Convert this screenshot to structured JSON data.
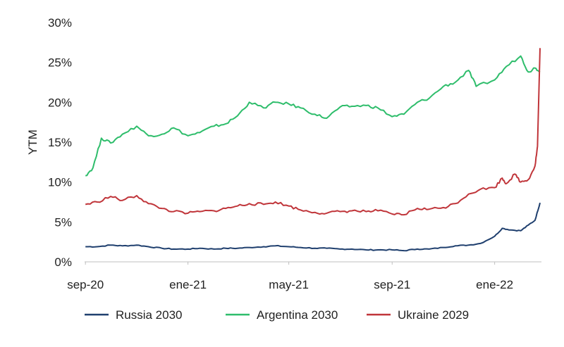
{
  "chart_data": {
    "type": "line",
    "title": "",
    "xlabel": "",
    "ylabel": "YTM",
    "ylim": [
      0,
      30
    ],
    "yticks": [
      "0%",
      "5%",
      "10%",
      "15%",
      "20%",
      "25%",
      "30%"
    ],
    "x_tick_labels": [
      "sep-20",
      "ene-21",
      "may-21",
      "sep-21",
      "ene-22"
    ],
    "x_ticks": [
      "2020-09-01",
      "2021-01-01",
      "2021-05-01",
      "2021-09-01",
      "2022-01-01"
    ],
    "grid": false,
    "legend_position": "bottom",
    "series": [
      {
        "name": "Russia 2030",
        "color": "#1f3f6e",
        "points": [
          [
            "2020-09-01",
            1.9
          ],
          [
            "2020-09-15",
            1.9
          ],
          [
            "2020-10-01",
            2.1
          ],
          [
            "2020-10-15",
            2.0
          ],
          [
            "2020-11-01",
            2.1
          ],
          [
            "2020-11-15",
            1.9
          ],
          [
            "2020-12-01",
            1.7
          ],
          [
            "2020-12-15",
            1.6
          ],
          [
            "2021-01-01",
            1.6
          ],
          [
            "2021-01-15",
            1.7
          ],
          [
            "2021-02-01",
            1.6
          ],
          [
            "2021-02-15",
            1.7
          ],
          [
            "2021-03-01",
            1.7
          ],
          [
            "2021-03-15",
            1.8
          ],
          [
            "2021-04-01",
            1.9
          ],
          [
            "2021-04-15",
            2.0
          ],
          [
            "2021-05-01",
            1.9
          ],
          [
            "2021-05-15",
            1.8
          ],
          [
            "2021-06-01",
            1.7
          ],
          [
            "2021-06-15",
            1.7
          ],
          [
            "2021-07-01",
            1.6
          ],
          [
            "2021-07-15",
            1.6
          ],
          [
            "2021-08-01",
            1.5
          ],
          [
            "2021-08-15",
            1.5
          ],
          [
            "2021-09-01",
            1.5
          ],
          [
            "2021-09-15",
            1.4
          ],
          [
            "2021-10-01",
            1.6
          ],
          [
            "2021-10-15",
            1.6
          ],
          [
            "2021-11-01",
            1.8
          ],
          [
            "2021-11-15",
            2.0
          ],
          [
            "2021-12-01",
            2.1
          ],
          [
            "2021-12-15",
            2.3
          ],
          [
            "2022-01-01",
            3.2
          ],
          [
            "2022-01-10",
            4.2
          ],
          [
            "2022-01-20",
            4.0
          ],
          [
            "2022-02-01",
            3.9
          ],
          [
            "2022-02-10",
            4.6
          ],
          [
            "2022-02-18",
            5.2
          ],
          [
            "2022-02-24",
            7.4
          ]
        ]
      },
      {
        "name": "Argentina 2030",
        "color": "#2ebd6b",
        "points": [
          [
            "2020-09-01",
            10.8
          ],
          [
            "2020-09-10",
            11.8
          ],
          [
            "2020-09-20",
            15.5
          ],
          [
            "2020-10-01",
            14.9
          ],
          [
            "2020-10-15",
            16.0
          ],
          [
            "2020-11-01",
            17.0
          ],
          [
            "2020-11-15",
            15.8
          ],
          [
            "2020-12-01",
            16.0
          ],
          [
            "2020-12-15",
            16.8
          ],
          [
            "2021-01-01",
            15.8
          ],
          [
            "2021-01-15",
            16.2
          ],
          [
            "2021-02-01",
            17.0
          ],
          [
            "2021-02-15",
            17.3
          ],
          [
            "2021-03-01",
            18.3
          ],
          [
            "2021-03-15",
            20.0
          ],
          [
            "2021-04-01",
            19.3
          ],
          [
            "2021-04-15",
            20.0
          ],
          [
            "2021-05-01",
            19.8
          ],
          [
            "2021-05-15",
            19.3
          ],
          [
            "2021-06-01",
            18.5
          ],
          [
            "2021-06-15",
            18.0
          ],
          [
            "2021-07-01",
            19.4
          ],
          [
            "2021-07-15",
            19.5
          ],
          [
            "2021-08-01",
            19.6
          ],
          [
            "2021-08-15",
            19.3
          ],
          [
            "2021-09-01",
            18.2
          ],
          [
            "2021-09-15",
            18.5
          ],
          [
            "2021-10-01",
            20.0
          ],
          [
            "2021-10-15",
            20.5
          ],
          [
            "2021-11-01",
            22.0
          ],
          [
            "2021-11-15",
            22.5
          ],
          [
            "2021-12-01",
            24.0
          ],
          [
            "2021-12-10",
            22.0
          ],
          [
            "2022-01-01",
            22.8
          ],
          [
            "2022-01-15",
            24.5
          ],
          [
            "2022-02-01",
            25.8
          ],
          [
            "2022-02-10",
            23.8
          ],
          [
            "2022-02-18",
            24.3
          ],
          [
            "2022-02-24",
            23.9
          ]
        ]
      },
      {
        "name": "Ukraine 2029",
        "color": "#c0353a",
        "points": [
          [
            "2020-09-01",
            7.2
          ],
          [
            "2020-09-15",
            7.5
          ],
          [
            "2020-10-01",
            8.2
          ],
          [
            "2020-10-15",
            7.7
          ],
          [
            "2020-11-01",
            8.3
          ],
          [
            "2020-11-15",
            7.3
          ],
          [
            "2020-12-01",
            6.7
          ],
          [
            "2020-12-15",
            6.3
          ],
          [
            "2021-01-01",
            6.1
          ],
          [
            "2021-01-15",
            6.3
          ],
          [
            "2021-02-01",
            6.4
          ],
          [
            "2021-02-15",
            6.7
          ],
          [
            "2021-03-01",
            7.0
          ],
          [
            "2021-03-15",
            7.3
          ],
          [
            "2021-04-01",
            7.2
          ],
          [
            "2021-04-15",
            7.5
          ],
          [
            "2021-05-01",
            7.0
          ],
          [
            "2021-05-15",
            6.5
          ],
          [
            "2021-06-01",
            6.2
          ],
          [
            "2021-06-15",
            6.1
          ],
          [
            "2021-07-01",
            6.3
          ],
          [
            "2021-07-15",
            6.4
          ],
          [
            "2021-08-01",
            6.3
          ],
          [
            "2021-08-15",
            6.4
          ],
          [
            "2021-09-01",
            6.0
          ],
          [
            "2021-09-15",
            5.9
          ],
          [
            "2021-10-01",
            6.7
          ],
          [
            "2021-10-15",
            6.6
          ],
          [
            "2021-11-01",
            6.8
          ],
          [
            "2021-11-15",
            7.3
          ],
          [
            "2021-12-01",
            8.5
          ],
          [
            "2021-12-15",
            9.1
          ],
          [
            "2022-01-01",
            9.3
          ],
          [
            "2022-01-10",
            10.5
          ],
          [
            "2022-01-15",
            9.8
          ],
          [
            "2022-01-25",
            11.0
          ],
          [
            "2022-02-01",
            10.0
          ],
          [
            "2022-02-10",
            10.3
          ],
          [
            "2022-02-18",
            12.0
          ],
          [
            "2022-02-21",
            14.5
          ],
          [
            "2022-02-24",
            26.8
          ]
        ]
      }
    ]
  }
}
